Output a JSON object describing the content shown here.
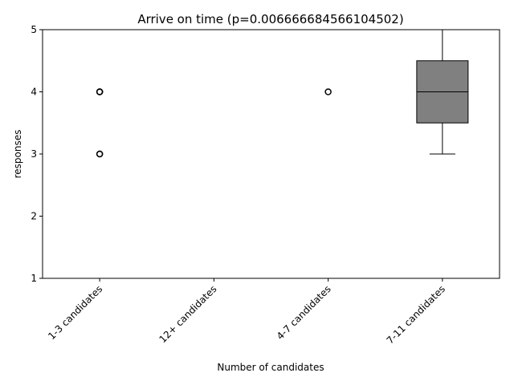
{
  "chart_data": {
    "type": "box",
    "title": "Arrive on time (p=0.006666684566104502)",
    "xlabel": "Number of candidates",
    "ylabel": "responses",
    "ylim": [
      1,
      5
    ],
    "yticks": [
      1,
      2,
      3,
      4,
      5
    ],
    "categories": [
      "1-3 candidates",
      "12+ candidates",
      "4-7 candidates",
      "7-11 candidates"
    ],
    "boxes": [
      {
        "category": "1-3 candidates",
        "whisker_low": 5,
        "q1": 5,
        "median": 5,
        "q3": 5,
        "whisker_high": 5,
        "outliers": [
          4,
          4,
          4,
          3,
          3
        ]
      },
      {
        "category": "12+ candidates",
        "whisker_low": 5,
        "q1": 5,
        "median": 5,
        "q3": 5,
        "whisker_high": 5,
        "outliers": []
      },
      {
        "category": "4-7 candidates",
        "whisker_low": 5,
        "q1": 5,
        "median": 5,
        "q3": 5,
        "whisker_high": 5,
        "outliers": [
          4
        ]
      },
      {
        "category": "7-11 candidates",
        "whisker_low": 3,
        "q1": 3.5,
        "median": 4,
        "q3": 4.5,
        "whisker_high": 5,
        "outliers": []
      }
    ],
    "box_color": "#808080",
    "grid": false,
    "legend": "none"
  }
}
